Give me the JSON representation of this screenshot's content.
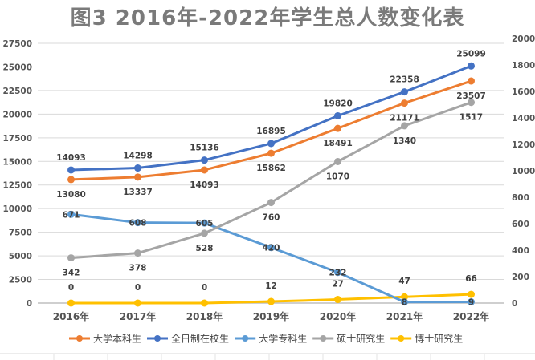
{
  "chart_data": {
    "type": "line",
    "title": "图3   2016年-2022年学生总人数变化表",
    "categories": [
      "2016年",
      "2017年",
      "2018年",
      "2019年",
      "2020年",
      "2021年",
      "2022年"
    ],
    "left_axis": {
      "ylim": [
        0,
        27500
      ],
      "ticks": [
        "0",
        "2500",
        "5000",
        "7500",
        "10000",
        "12500",
        "15000",
        "17500",
        "20000",
        "22500",
        "25000",
        "27500"
      ]
    },
    "right_axis": {
      "ylim": [
        0,
        2000
      ],
      "ticks": [
        "0",
        "200",
        "400",
        "600",
        "800",
        "1000",
        "1200",
        "1400",
        "1600",
        "1800",
        "2000"
      ]
    },
    "grid": true,
    "legend_position": "bottom",
    "series": [
      {
        "name": "大学本科生",
        "axis": "left",
        "color": "#ED7D31",
        "values": [
          13080,
          13337,
          14093,
          15862,
          18491,
          21171,
          23507
        ],
        "label_pos": "below"
      },
      {
        "name": "全日制在校生",
        "axis": "left",
        "color": "#4472C4",
        "values": [
          14093,
          14298,
          15136,
          16895,
          19820,
          22358,
          25099
        ],
        "label_pos": "above"
      },
      {
        "name": "大学专科生",
        "axis": "right",
        "color": "#5B9BD5",
        "values": [
          671,
          608,
          605,
          420,
          232,
          8,
          9
        ],
        "label_pos": "center"
      },
      {
        "name": "硕士研究生",
        "axis": "right",
        "color": "#A5A5A5",
        "values": [
          342,
          378,
          528,
          760,
          1070,
          1340,
          1517
        ],
        "label_pos": "below"
      },
      {
        "name": "博士研究生",
        "axis": "right",
        "color": "#FFC000",
        "values": [
          0,
          0,
          0,
          12,
          27,
          47,
          66
        ],
        "label_pos": "above"
      }
    ]
  }
}
